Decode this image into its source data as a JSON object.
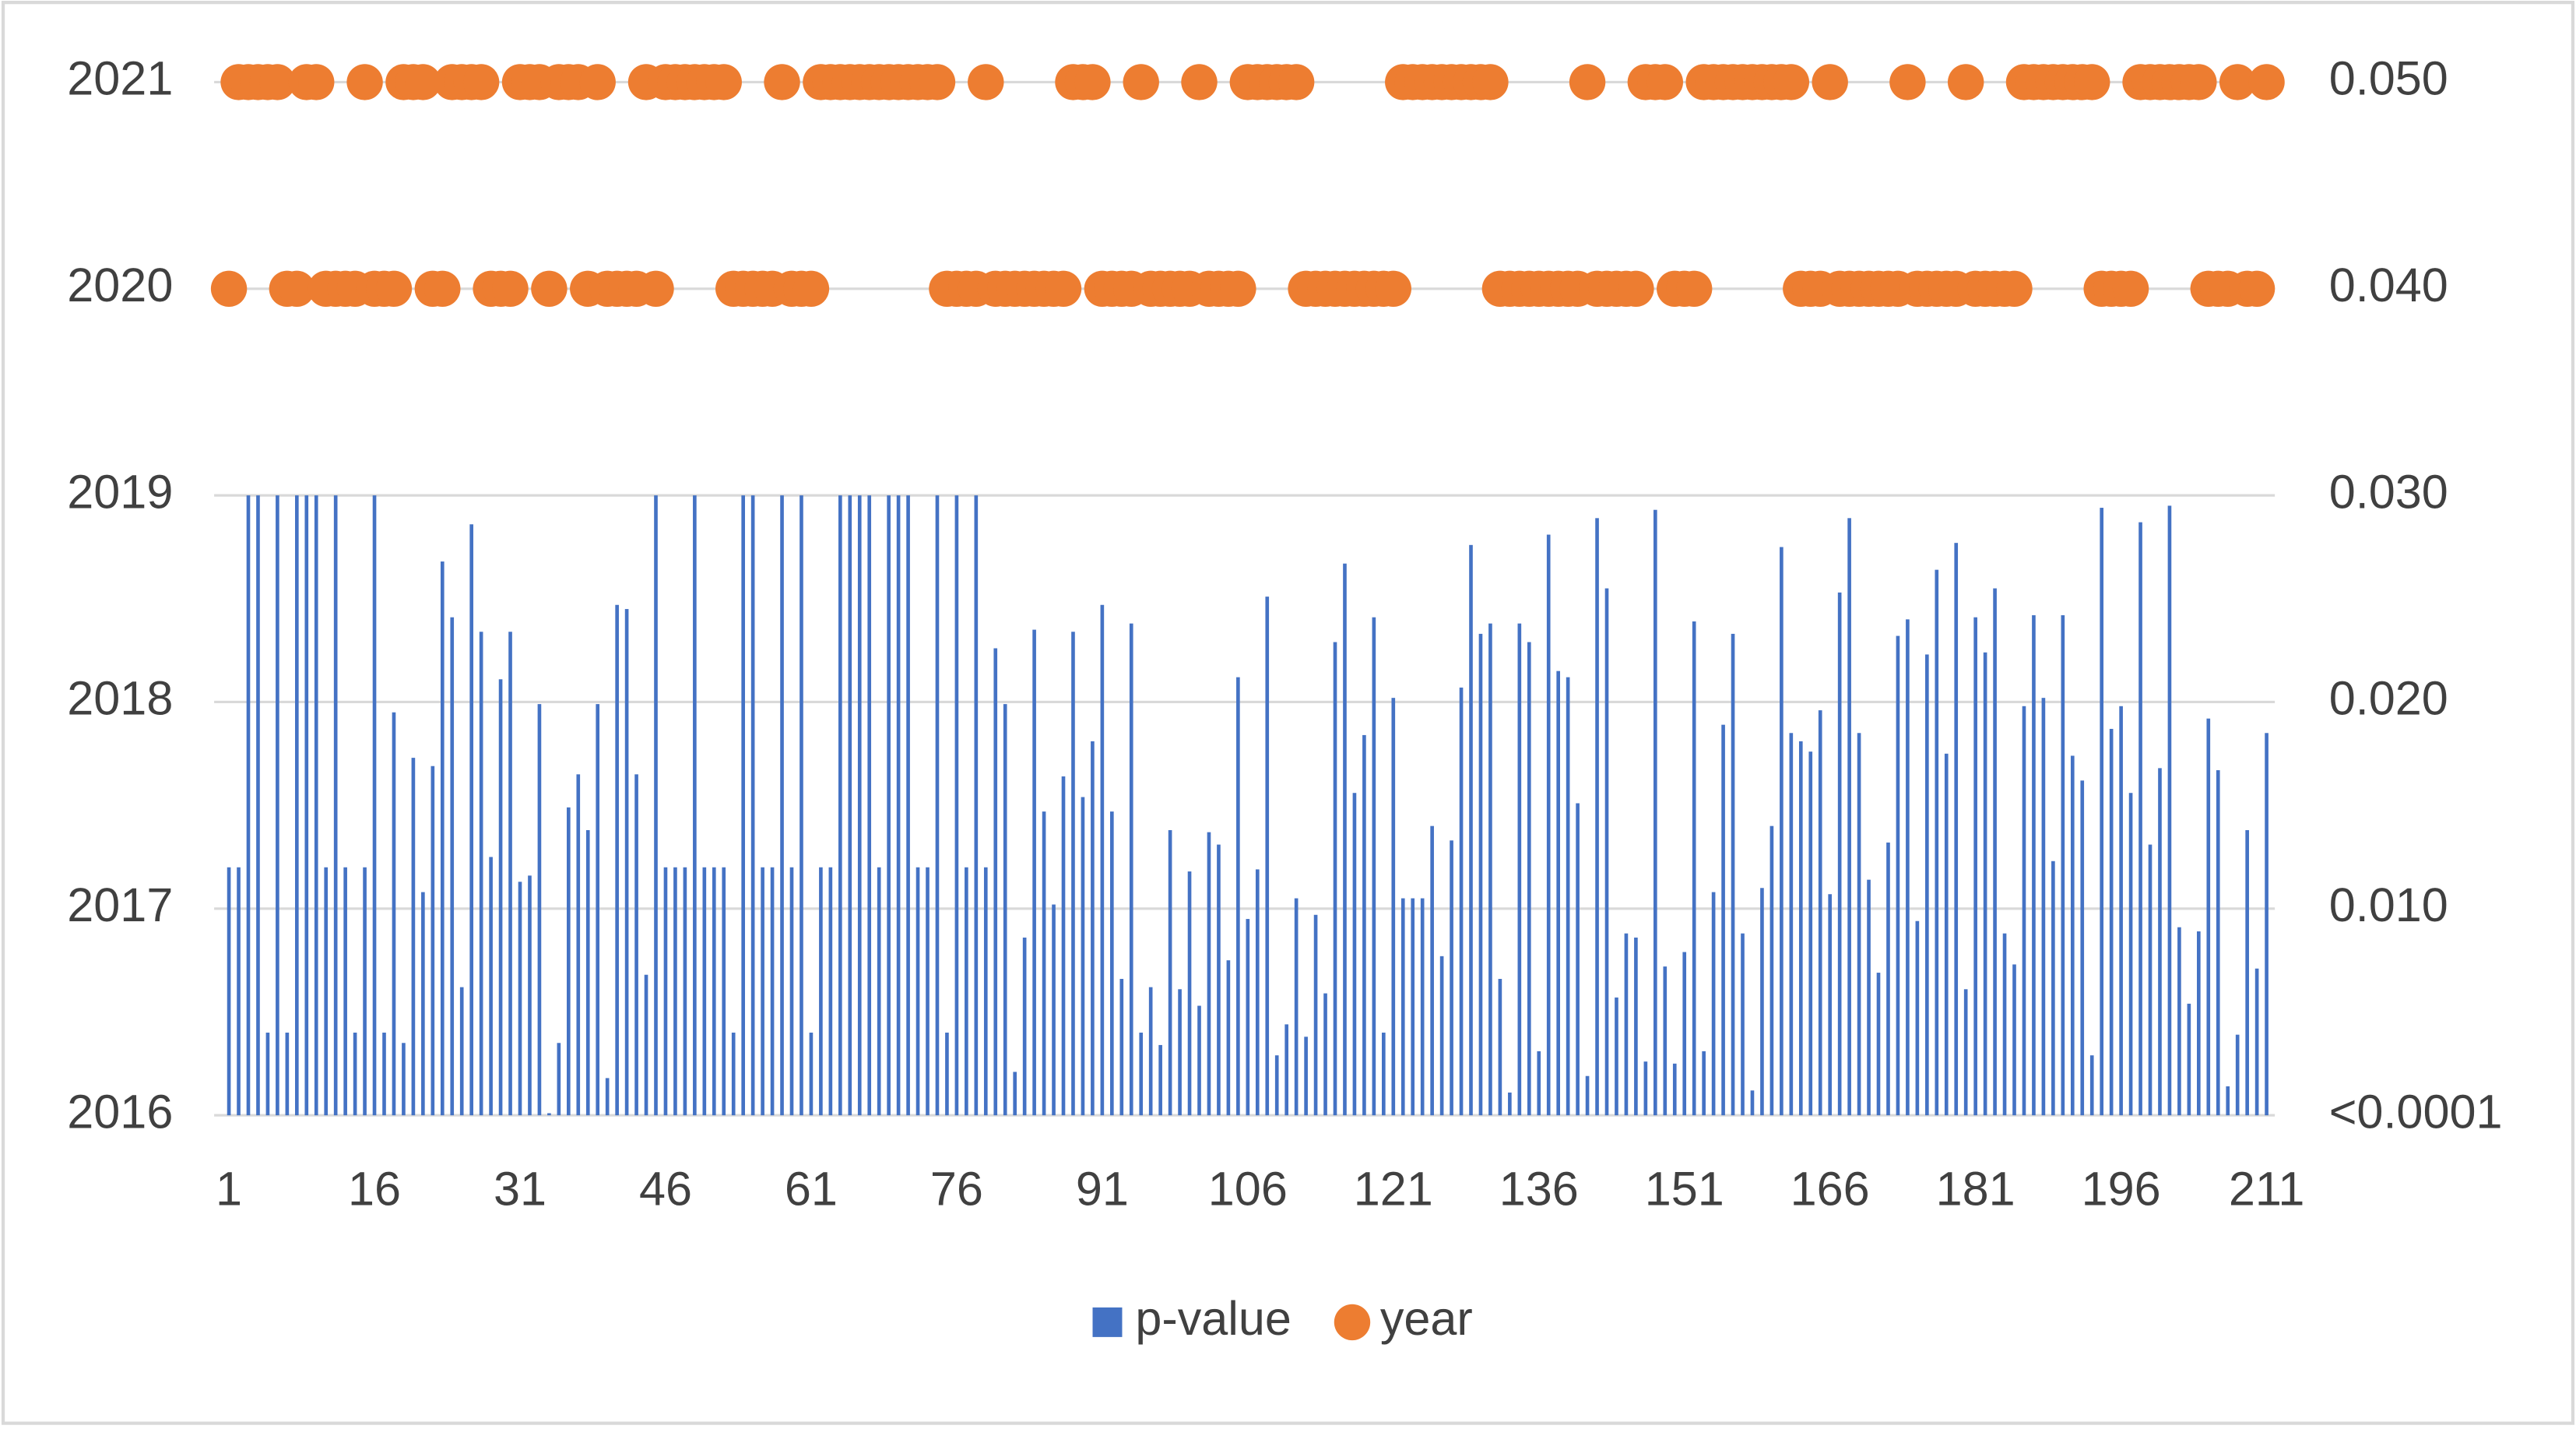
{
  "chart_data": {
    "type": "combo",
    "categories": [
      1,
      null,
      null,
      null,
      null,
      null,
      null,
      null,
      null,
      null,
      null,
      null,
      null,
      null,
      null,
      16,
      null,
      null,
      null,
      null,
      null,
      null,
      null,
      null,
      null,
      null,
      null,
      null,
      null,
      null,
      31,
      null,
      null,
      null,
      null,
      null,
      null,
      null,
      null,
      null,
      null,
      null,
      null,
      null,
      null,
      46,
      null,
      null,
      null,
      null,
      null,
      null,
      null,
      null,
      null,
      null,
      null,
      null,
      null,
      null,
      61,
      null,
      null,
      null,
      null,
      null,
      null,
      null,
      null,
      null,
      null,
      null,
      null,
      null,
      null,
      76,
      null,
      null,
      null,
      null,
      null,
      null,
      null,
      null,
      null,
      null,
      null,
      null,
      null,
      null,
      91,
      null,
      null,
      null,
      null,
      null,
      null,
      null,
      null,
      null,
      null,
      null,
      null,
      null,
      null,
      106,
      null,
      null,
      null,
      null,
      null,
      null,
      null,
      null,
      null,
      null,
      null,
      null,
      null,
      null,
      121,
      null,
      null,
      null,
      null,
      null,
      null,
      null,
      null,
      null,
      null,
      null,
      null,
      null,
      null,
      136,
      null,
      null,
      null,
      null,
      null,
      null,
      null,
      null,
      null,
      null,
      null,
      null,
      null,
      null,
      151,
      null,
      null,
      null,
      null,
      null,
      null,
      null,
      null,
      null,
      null,
      null,
      null,
      null,
      null,
      166,
      null,
      null,
      null,
      null,
      null,
      null,
      null,
      null,
      null,
      null,
      null,
      null,
      null,
      null,
      181,
      null,
      null,
      null,
      null,
      null,
      null,
      null,
      null,
      null,
      null,
      null,
      null,
      null,
      null,
      196,
      null,
      null,
      null,
      null,
      null,
      null,
      null,
      null,
      null,
      null,
      null,
      null,
      null,
      null,
      211
    ],
    "series": [
      {
        "name": "p-value",
        "type": "bar",
        "axis": "y2",
        "color": "#4472c4",
        "values": [
          0.012,
          0.012,
          0.03,
          0.03,
          0.004,
          0.03,
          0.004,
          0.03,
          0.03,
          0.03,
          0.012,
          0.03,
          0.012,
          0.004,
          0.012,
          0.03,
          0.004,
          0.0195,
          0.0035,
          0.0173,
          0.0108,
          0.0169,
          0.0268,
          0.0241,
          0.0062,
          0.0286,
          0.0234,
          0.0125,
          0.0211,
          0.0234,
          0.0113,
          0.0116,
          0.0199,
          0.0001,
          0.0035,
          0.0149,
          0.0165,
          0.0138,
          0.0199,
          0.0018,
          0.0247,
          0.0245,
          0.0165,
          0.0068,
          0.03,
          0.012,
          0.012,
          0.012,
          0.03,
          0.012,
          0.012,
          0.012,
          0.004,
          0.03,
          0.03,
          0.012,
          0.012,
          0.03,
          0.012,
          0.03,
          0.004,
          0.012,
          0.012,
          0.03,
          0.03,
          0.03,
          0.03,
          0.012,
          0.03,
          0.03,
          0.03,
          0.012,
          0.012,
          0.03,
          0.004,
          0.03,
          0.012,
          0.03,
          0.012,
          0.0226,
          0.0199,
          0.0021,
          0.0086,
          0.0235,
          0.0147,
          0.0102,
          0.0164,
          0.0234,
          0.0154,
          0.0181,
          0.0247,
          0.0147,
          0.0066,
          0.0238,
          0.004,
          0.0062,
          0.0034,
          0.0138,
          0.0061,
          0.0118,
          0.0053,
          0.0137,
          0.0131,
          0.0075,
          0.0212,
          0.0095,
          0.0119,
          0.0251,
          0.0029,
          0.0044,
          0.0105,
          0.0038,
          0.0097,
          0.0059,
          0.0229,
          0.0267,
          0.0156,
          0.0184,
          0.0241,
          0.004,
          0.0202,
          0.0105,
          0.0105,
          0.0105,
          0.014,
          0.0077,
          0.0133,
          0.0207,
          0.0276,
          0.0233,
          0.0238,
          0.0066,
          0.0011,
          0.0238,
          0.0229,
          0.0031,
          0.0281,
          0.0215,
          0.0212,
          0.0151,
          0.0019,
          0.0289,
          0.0255,
          0.0057,
          0.0088,
          0.0086,
          0.0026,
          0.0293,
          0.0072,
          0.0025,
          0.0079,
          0.0239,
          0.0031,
          0.0108,
          0.0189,
          0.0233,
          0.0088,
          0.0012,
          0.011,
          0.014,
          0.0275,
          0.0185,
          0.0181,
          0.0176,
          0.0196,
          0.0107,
          0.0253,
          0.0289,
          0.0185,
          0.0114,
          0.0069,
          0.0132,
          0.0232,
          0.024,
          0.0094,
          0.0223,
          0.0264,
          0.0175,
          0.0277,
          0.0061,
          0.0241,
          0.0224,
          0.0255,
          0.0088,
          0.0073,
          0.0198,
          0.0242,
          0.0202,
          0.0123,
          0.0242,
          0.0174,
          0.0162,
          0.0029,
          0.0294,
          0.0187,
          0.0198,
          0.0156,
          0.0287,
          0.0131,
          0.0168,
          0.0295,
          0.0091,
          0.0054,
          0.0089,
          0.0192,
          0.0167,
          0.0014,
          0.0039,
          0.0138,
          0.0071,
          0.0185
        ]
      },
      {
        "name": "year",
        "type": "scatter",
        "axis": "y",
        "color": "#ed7d31",
        "values": [
          2020,
          2021,
          2021,
          2021,
          2021,
          2021,
          2020,
          2020,
          2021,
          2021,
          2020,
          2020,
          2020,
          2020,
          2021,
          2020,
          2020,
          2020,
          2021,
          2021,
          2021,
          2020,
          2020,
          2021,
          2021,
          2021,
          2021,
          2020,
          2020,
          2020,
          2021,
          2021,
          2021,
          2020,
          2021,
          2021,
          2021,
          2020,
          2021,
          2020,
          2020,
          2020,
          2020,
          2021,
          2020,
          2021,
          2021,
          2021,
          2021,
          2021,
          2021,
          2021,
          2020,
          2020,
          2020,
          2020,
          2020,
          2021,
          2020,
          2020,
          2020,
          2021,
          2021,
          2021,
          2021,
          2021,
          2021,
          2021,
          2021,
          2021,
          2021,
          2021,
          2021,
          2021,
          2020,
          2020,
          2020,
          2020,
          2021,
          2020,
          2020,
          2020,
          2020,
          2020,
          2020,
          2020,
          2020,
          2021,
          2021,
          2021,
          2020,
          2020,
          2020,
          2020,
          2021,
          2020,
          2020,
          2020,
          2020,
          2020,
          2021,
          2020,
          2020,
          2020,
          2020,
          2021,
          2021,
          2021,
          2021,
          2021,
          2021,
          2020,
          2020,
          2020,
          2020,
          2020,
          2020,
          2020,
          2020,
          2020,
          2020,
          2021,
          2021,
          2021,
          2021,
          2021,
          2021,
          2021,
          2021,
          2021,
          2021,
          2020,
          2020,
          2020,
          2020,
          2020,
          2020,
          2020,
          2020,
          2020,
          2021,
          2020,
          2020,
          2020,
          2020,
          2020,
          2021,
          2021,
          2021,
          2020,
          2020,
          2020,
          2021,
          2021,
          2021,
          2021,
          2021,
          2021,
          2021,
          2021,
          2021,
          2021,
          2020,
          2020,
          2020,
          2021,
          2020,
          2020,
          2020,
          2020,
          2020,
          2020,
          2020,
          2021,
          2020,
          2020,
          2020,
          2020,
          2020,
          2021,
          2020,
          2020,
          2020,
          2020,
          2020,
          2021,
          2021,
          2021,
          2021,
          2021,
          2021,
          2021,
          2021,
          2020,
          2020,
          2020,
          2020,
          2021,
          2021,
          2021,
          2021,
          2021,
          2021,
          2021,
          2020,
          2020,
          2020,
          2021,
          2020,
          2020,
          2021
        ]
      }
    ],
    "ylim": [
      2016,
      2021
    ],
    "yticks": [
      2016,
      2017,
      2018,
      2019,
      2020,
      2021
    ],
    "y2lim": [
      0,
      0.05
    ],
    "y2ticks": [
      {
        "value": 0,
        "label": "<0.0001"
      },
      {
        "value": 0.01,
        "label": "0.010"
      },
      {
        "value": 0.02,
        "label": "0.020"
      },
      {
        "value": 0.03,
        "label": "0.030"
      },
      {
        "value": 0.04,
        "label": "0.040"
      },
      {
        "value": 0.05,
        "label": "0.050"
      }
    ],
    "grid": true,
    "legend": "bottom"
  }
}
